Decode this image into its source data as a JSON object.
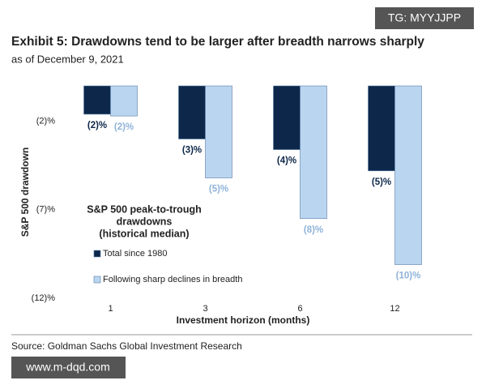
{
  "chart_data": {
    "type": "bar",
    "title": "Exhibit 5: Drawdowns tend to be larger after breadth narrows sharply",
    "subtitle": "as of December 9, 2021",
    "x_label": "Investment horizon (months)",
    "y_label": "S&P 500 drawdown",
    "legend_title": [
      "S&P 500 peak-to-trough",
      "drawdowns",
      "(historical median)"
    ],
    "categories": [
      "1",
      "3",
      "6",
      "12"
    ],
    "series": [
      {
        "name": "Total since 1980",
        "color": "#0c2749",
        "values": [
          -1.6,
          -3,
          -3.6,
          -4.8
        ],
        "value_labels": [
          "(2)%",
          "(3)%",
          "(4)%",
          "(5)%"
        ]
      },
      {
        "name": "Following sharp declines in breadth",
        "color": "#b9d5f0",
        "values": [
          -1.7,
          -5.2,
          -7.5,
          -10.1
        ],
        "value_labels": [
          "(2)%",
          "(5)%",
          "(8)%",
          "(10)%"
        ]
      }
    ],
    "ylim": [
      -12,
      0
    ],
    "yticks": [
      {
        "value": -2,
        "label": "(2)%"
      },
      {
        "value": -7,
        "label": "(7)%"
      },
      {
        "value": -12,
        "label": "(12)%"
      }
    ],
    "source": "Source: Goldman Sachs Global Investment Research"
  },
  "watermarks": [
    "TG: MYYJJPP",
    "www.m-dqd.com"
  ]
}
